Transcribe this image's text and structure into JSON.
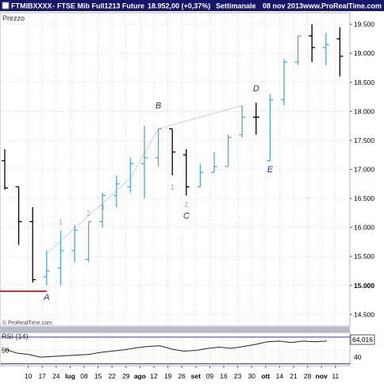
{
  "header": {
    "symbol": "FTMIBXXXX",
    "instrument": "FTSE Mib Full1213 Future",
    "price": "18.952,00 (+0,37%)",
    "period": "Settimanale",
    "date": "08 nov 2013",
    "site": "www.ProRealTime.com"
  },
  "price_panel": {
    "label": "Prezzo",
    "watermark": "© ProRealTime.com"
  },
  "rsi_panel": {
    "label": "RSI (14)",
    "current_value": "64,016"
  },
  "colors": {
    "header_bg": "#16166b",
    "up_bar": "#4aa8f0",
    "down_bar": "#000000",
    "grid": "#cccccc",
    "trend_line": "#cfcfcf",
    "support_line": "#cc0000",
    "wave_label": "#2a2ad0",
    "wave_count": "#a8a8a8",
    "separator": "#b8bcc6"
  },
  "chart_data": [
    {
      "type": "ohlc",
      "ylim": [
        14300,
        19700
      ],
      "yticks": [
        "14.500",
        "15.000",
        "15.500",
        "16.000",
        "16.500",
        "17.000",
        "17.500",
        "18.000",
        "18.500",
        "19.000",
        "19.500"
      ],
      "ytick_values": [
        14500,
        15000,
        15500,
        16000,
        16500,
        17000,
        17500,
        18000,
        18500,
        19000,
        19500
      ],
      "xticks": [
        {
          "label": "10",
          "index": 1
        },
        {
          "label": "17",
          "index": 2
        },
        {
          "label": "24",
          "index": 3
        },
        {
          "label": "lug",
          "index": 4
        },
        {
          "label": "08",
          "index": 5
        },
        {
          "label": "15",
          "index": 6
        },
        {
          "label": "22",
          "index": 7
        },
        {
          "label": "29",
          "index": 8
        },
        {
          "label": "ago",
          "index": 9
        },
        {
          "label": "12",
          "index": 10
        },
        {
          "label": "19",
          "index": 11
        },
        {
          "label": "26",
          "index": 12
        },
        {
          "label": "set",
          "index": 13
        },
        {
          "label": "09",
          "index": 14
        },
        {
          "label": "16",
          "index": 15
        },
        {
          "label": "23",
          "index": 16
        },
        {
          "label": "30",
          "index": 17
        },
        {
          "label": "ott",
          "index": 18
        },
        {
          "label": "14",
          "index": 19
        },
        {
          "label": "21",
          "index": 20
        },
        {
          "label": "28",
          "index": 21
        },
        {
          "label": "nov",
          "index": 22
        },
        {
          "label": "11",
          "index": 23
        }
      ],
      "bars": [
        {
          "o": 17150,
          "h": 17350,
          "l": 16650,
          "c": 16680,
          "dir": "down"
        },
        {
          "o": 16700,
          "h": 16700,
          "l": 15700,
          "c": 16100,
          "dir": "down"
        },
        {
          "o": 16100,
          "h": 16350,
          "l": 15050,
          "c": 15100,
          "dir": "down"
        },
        {
          "o": 15150,
          "h": 15600,
          "l": 15000,
          "c": 15250,
          "dir": "up"
        },
        {
          "o": 15300,
          "h": 15950,
          "l": 15000,
          "c": 15600,
          "dir": "up"
        },
        {
          "o": 15600,
          "h": 16050,
          "l": 15400,
          "c": 15950,
          "dir": "up"
        },
        {
          "o": 15450,
          "h": 16100,
          "l": 15400,
          "c": 16100,
          "dir": "up"
        },
        {
          "o": 16100,
          "h": 16600,
          "l": 16000,
          "c": 16550,
          "dir": "up"
        },
        {
          "o": 16550,
          "h": 16900,
          "l": 16350,
          "c": 16750,
          "dir": "up"
        },
        {
          "o": 16700,
          "h": 17200,
          "l": 16600,
          "c": 17100,
          "dir": "up"
        },
        {
          "o": 17100,
          "h": 17750,
          "l": 16500,
          "c": 17200,
          "dir": "up"
        },
        {
          "o": 17200,
          "h": 17700,
          "l": 17050,
          "c": 17700,
          "dir": "up"
        },
        {
          "o": 17700,
          "h": 17700,
          "l": 16900,
          "c": 17300,
          "dir": "down"
        },
        {
          "o": 17250,
          "h": 17350,
          "l": 16550,
          "c": 16700,
          "dir": "down"
        },
        {
          "o": 16700,
          "h": 17100,
          "l": 16700,
          "c": 16950,
          "dir": "up"
        },
        {
          "o": 16950,
          "h": 17300,
          "l": 16950,
          "c": 17050,
          "dir": "up"
        },
        {
          "o": 17050,
          "h": 17600,
          "l": 17050,
          "c": 17550,
          "dir": "up"
        },
        {
          "o": 17600,
          "h": 18100,
          "l": 17550,
          "c": 17900,
          "dir": "up"
        },
        {
          "o": 17900,
          "h": 18150,
          "l": 17600,
          "c": 17900,
          "dir": "down"
        },
        {
          "o": 17150,
          "h": 18300,
          "l": 17150,
          "c": 18200,
          "dir": "up"
        },
        {
          "o": 18200,
          "h": 18900,
          "l": 18100,
          "c": 18850,
          "dir": "up"
        },
        {
          "o": 18850,
          "h": 19300,
          "l": 18800,
          "c": 19300,
          "dir": "up"
        },
        {
          "o": 19300,
          "h": 19500,
          "l": 18850,
          "c": 19100,
          "dir": "down"
        },
        {
          "o": 19100,
          "h": 19350,
          "l": 18800,
          "c": 19150,
          "dir": "up"
        },
        {
          "o": 19250,
          "h": 19450,
          "l": 18600,
          "c": 18950,
          "dir": "down"
        }
      ],
      "wave_labels": [
        {
          "text": "A",
          "bar": 3,
          "price": 14750
        },
        {
          "text": "B",
          "bar": 11,
          "price": 18050
        },
        {
          "text": "C",
          "bar": 13,
          "price": 16150
        },
        {
          "text": "D",
          "bar": 18,
          "price": 18350
        },
        {
          "text": "E",
          "bar": 19,
          "price": 16950
        }
      ],
      "wave_counts": [
        {
          "text": "1",
          "bar": 4,
          "price": 16050
        },
        {
          "text": "2",
          "bar": 6,
          "price": 16200
        },
        {
          "text": "3",
          "bar": 7,
          "price": 16300
        },
        {
          "text": "1",
          "bar": 12,
          "price": 16650
        },
        {
          "text": "2",
          "bar": 13,
          "price": 16350
        }
      ],
      "trend_line": [
        {
          "bar": 3,
          "price": 15550
        },
        {
          "bar": 9,
          "price": 16850
        },
        {
          "bar": 11,
          "price": 17700
        },
        {
          "bar": 17,
          "price": 18100
        }
      ],
      "support_line": {
        "price": 14900,
        "from_bar": -1,
        "to_bar": 3
      }
    },
    {
      "type": "line",
      "name": "RSI (14)",
      "ylim": [
        27,
        77
      ],
      "yticks": [
        "50",
        "40"
      ],
      "ytick_values": [
        50,
        40
      ],
      "levels": [
        30,
        70
      ],
      "values": [
        52,
        46,
        44,
        40,
        41,
        42,
        43,
        44,
        47,
        49,
        51,
        54,
        56,
        57,
        52,
        49,
        50,
        53,
        55,
        53,
        56,
        59,
        63,
        64,
        62,
        64,
        63,
        64
      ]
    }
  ]
}
